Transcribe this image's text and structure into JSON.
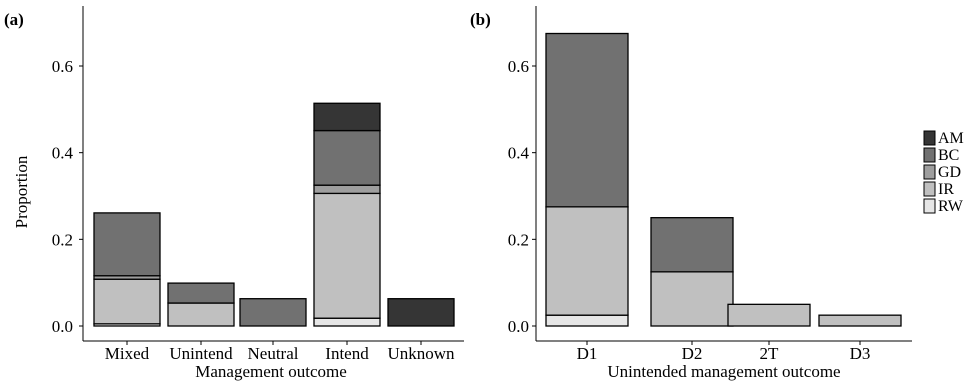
{
  "legend": {
    "items": [
      {
        "code": "AM",
        "color": "#353535"
      },
      {
        "code": "BC",
        "color": "#717171"
      },
      {
        "code": "GD",
        "color": "#9e9e9e"
      },
      {
        "code": "IR",
        "color": "#c0c0c0"
      },
      {
        "code": "RW",
        "color": "#e6e6e6"
      }
    ]
  },
  "chart_data": [
    {
      "type": "bar",
      "stacked": true,
      "panel_label": "(a)",
      "xlabel": "Management outcome",
      "ylabel": "Proportion",
      "ylim": [
        0,
        0.73
      ],
      "yticks": [
        "0.0",
        "0.2",
        "0.4",
        "0.6"
      ],
      "categories": [
        "Mixed",
        "Unintend",
        "Neutral",
        "Intend",
        "Unknown"
      ],
      "series": [
        {
          "name": "RW",
          "values": [
            0.005,
            0.0,
            0.0,
            0.018,
            0.0
          ]
        },
        {
          "name": "IR",
          "values": [
            0.103,
            0.053,
            0.0,
            0.288,
            0.0
          ]
        },
        {
          "name": "GD",
          "values": [
            0.008,
            0.0,
            0.0,
            0.019,
            0.0
          ]
        },
        {
          "name": "BC",
          "values": [
            0.145,
            0.046,
            0.063,
            0.126,
            0.0
          ]
        },
        {
          "name": "AM",
          "values": [
            0.0,
            0.0,
            0.0,
            0.063,
            0.063
          ]
        }
      ]
    },
    {
      "type": "bar",
      "stacked": true,
      "panel_label": "(b)",
      "xlabel": "Unintended management outcome",
      "ylabel": "",
      "ylim": [
        0,
        0.73
      ],
      "yticks": [
        "0.0",
        "0.2",
        "0.4",
        "0.6"
      ],
      "categories": [
        "D1",
        "D2",
        "2T",
        "D3"
      ],
      "series": [
        {
          "name": "RW",
          "values": [
            0.025,
            0.0,
            0.0,
            0.0
          ]
        },
        {
          "name": "IR",
          "values": [
            0.25,
            0.125,
            0.05,
            0.025
          ]
        },
        {
          "name": "GD",
          "values": [
            0.0,
            0.0,
            0.0,
            0.0
          ]
        },
        {
          "name": "BC",
          "values": [
            0.4,
            0.125,
            0.0,
            0.0
          ]
        },
        {
          "name": "AM",
          "values": [
            0.0,
            0.0,
            0.0,
            0.0
          ]
        }
      ]
    }
  ]
}
